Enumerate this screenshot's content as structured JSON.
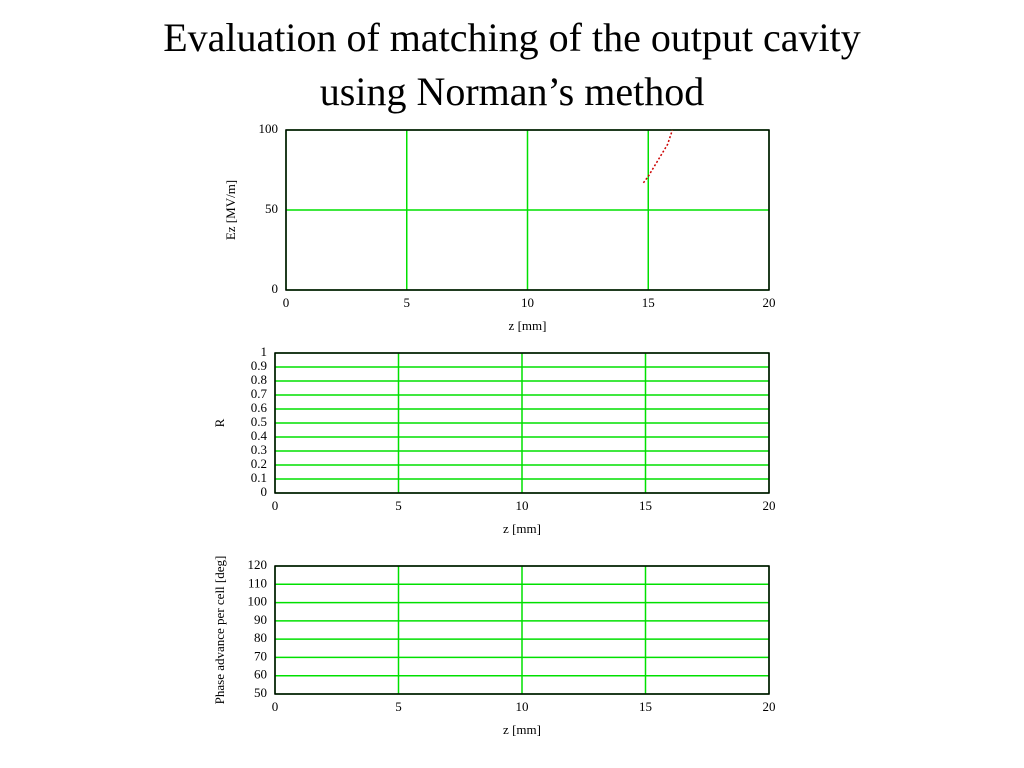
{
  "title_lines": [
    "Evaluation of matching of the output cavity",
    "using Norman’s method"
  ],
  "chart_data": [
    {
      "type": "line",
      "xlabel": "z [mm]",
      "ylabel": "Ez [MV/m]",
      "x": [
        14.8,
        15.0,
        15.2,
        15.4,
        15.6,
        15.8,
        16.0
      ],
      "values": [
        67,
        71,
        76,
        81,
        86,
        91,
        100
      ],
      "color": "#cc0000",
      "xlim": [
        0,
        20
      ],
      "xticks": [
        0,
        5,
        10,
        15,
        20
      ],
      "ylim": [
        0,
        100
      ],
      "yticks": [
        0,
        50,
        100
      ],
      "grid": true
    },
    {
      "type": "line",
      "xlabel": "z [mm]",
      "ylabel": "R",
      "xlim": [
        0,
        20
      ],
      "xticks": [
        0,
        5,
        10,
        15,
        20
      ],
      "ylim": [
        0,
        1
      ],
      "yticks": [
        0,
        0.1,
        0.2,
        0.3,
        0.4,
        0.5,
        0.6,
        0.7,
        0.8,
        0.9,
        1
      ],
      "grid": true
    },
    {
      "type": "line",
      "xlabel": "z [mm]",
      "ylabel": "Phase advance per cell [deg]",
      "xlim": [
        0,
        20
      ],
      "xticks": [
        0,
        5,
        10,
        15,
        20
      ],
      "ylim": [
        50,
        120
      ],
      "yticks": [
        50,
        60,
        70,
        80,
        90,
        100,
        110,
        120
      ],
      "grid": true
    }
  ]
}
